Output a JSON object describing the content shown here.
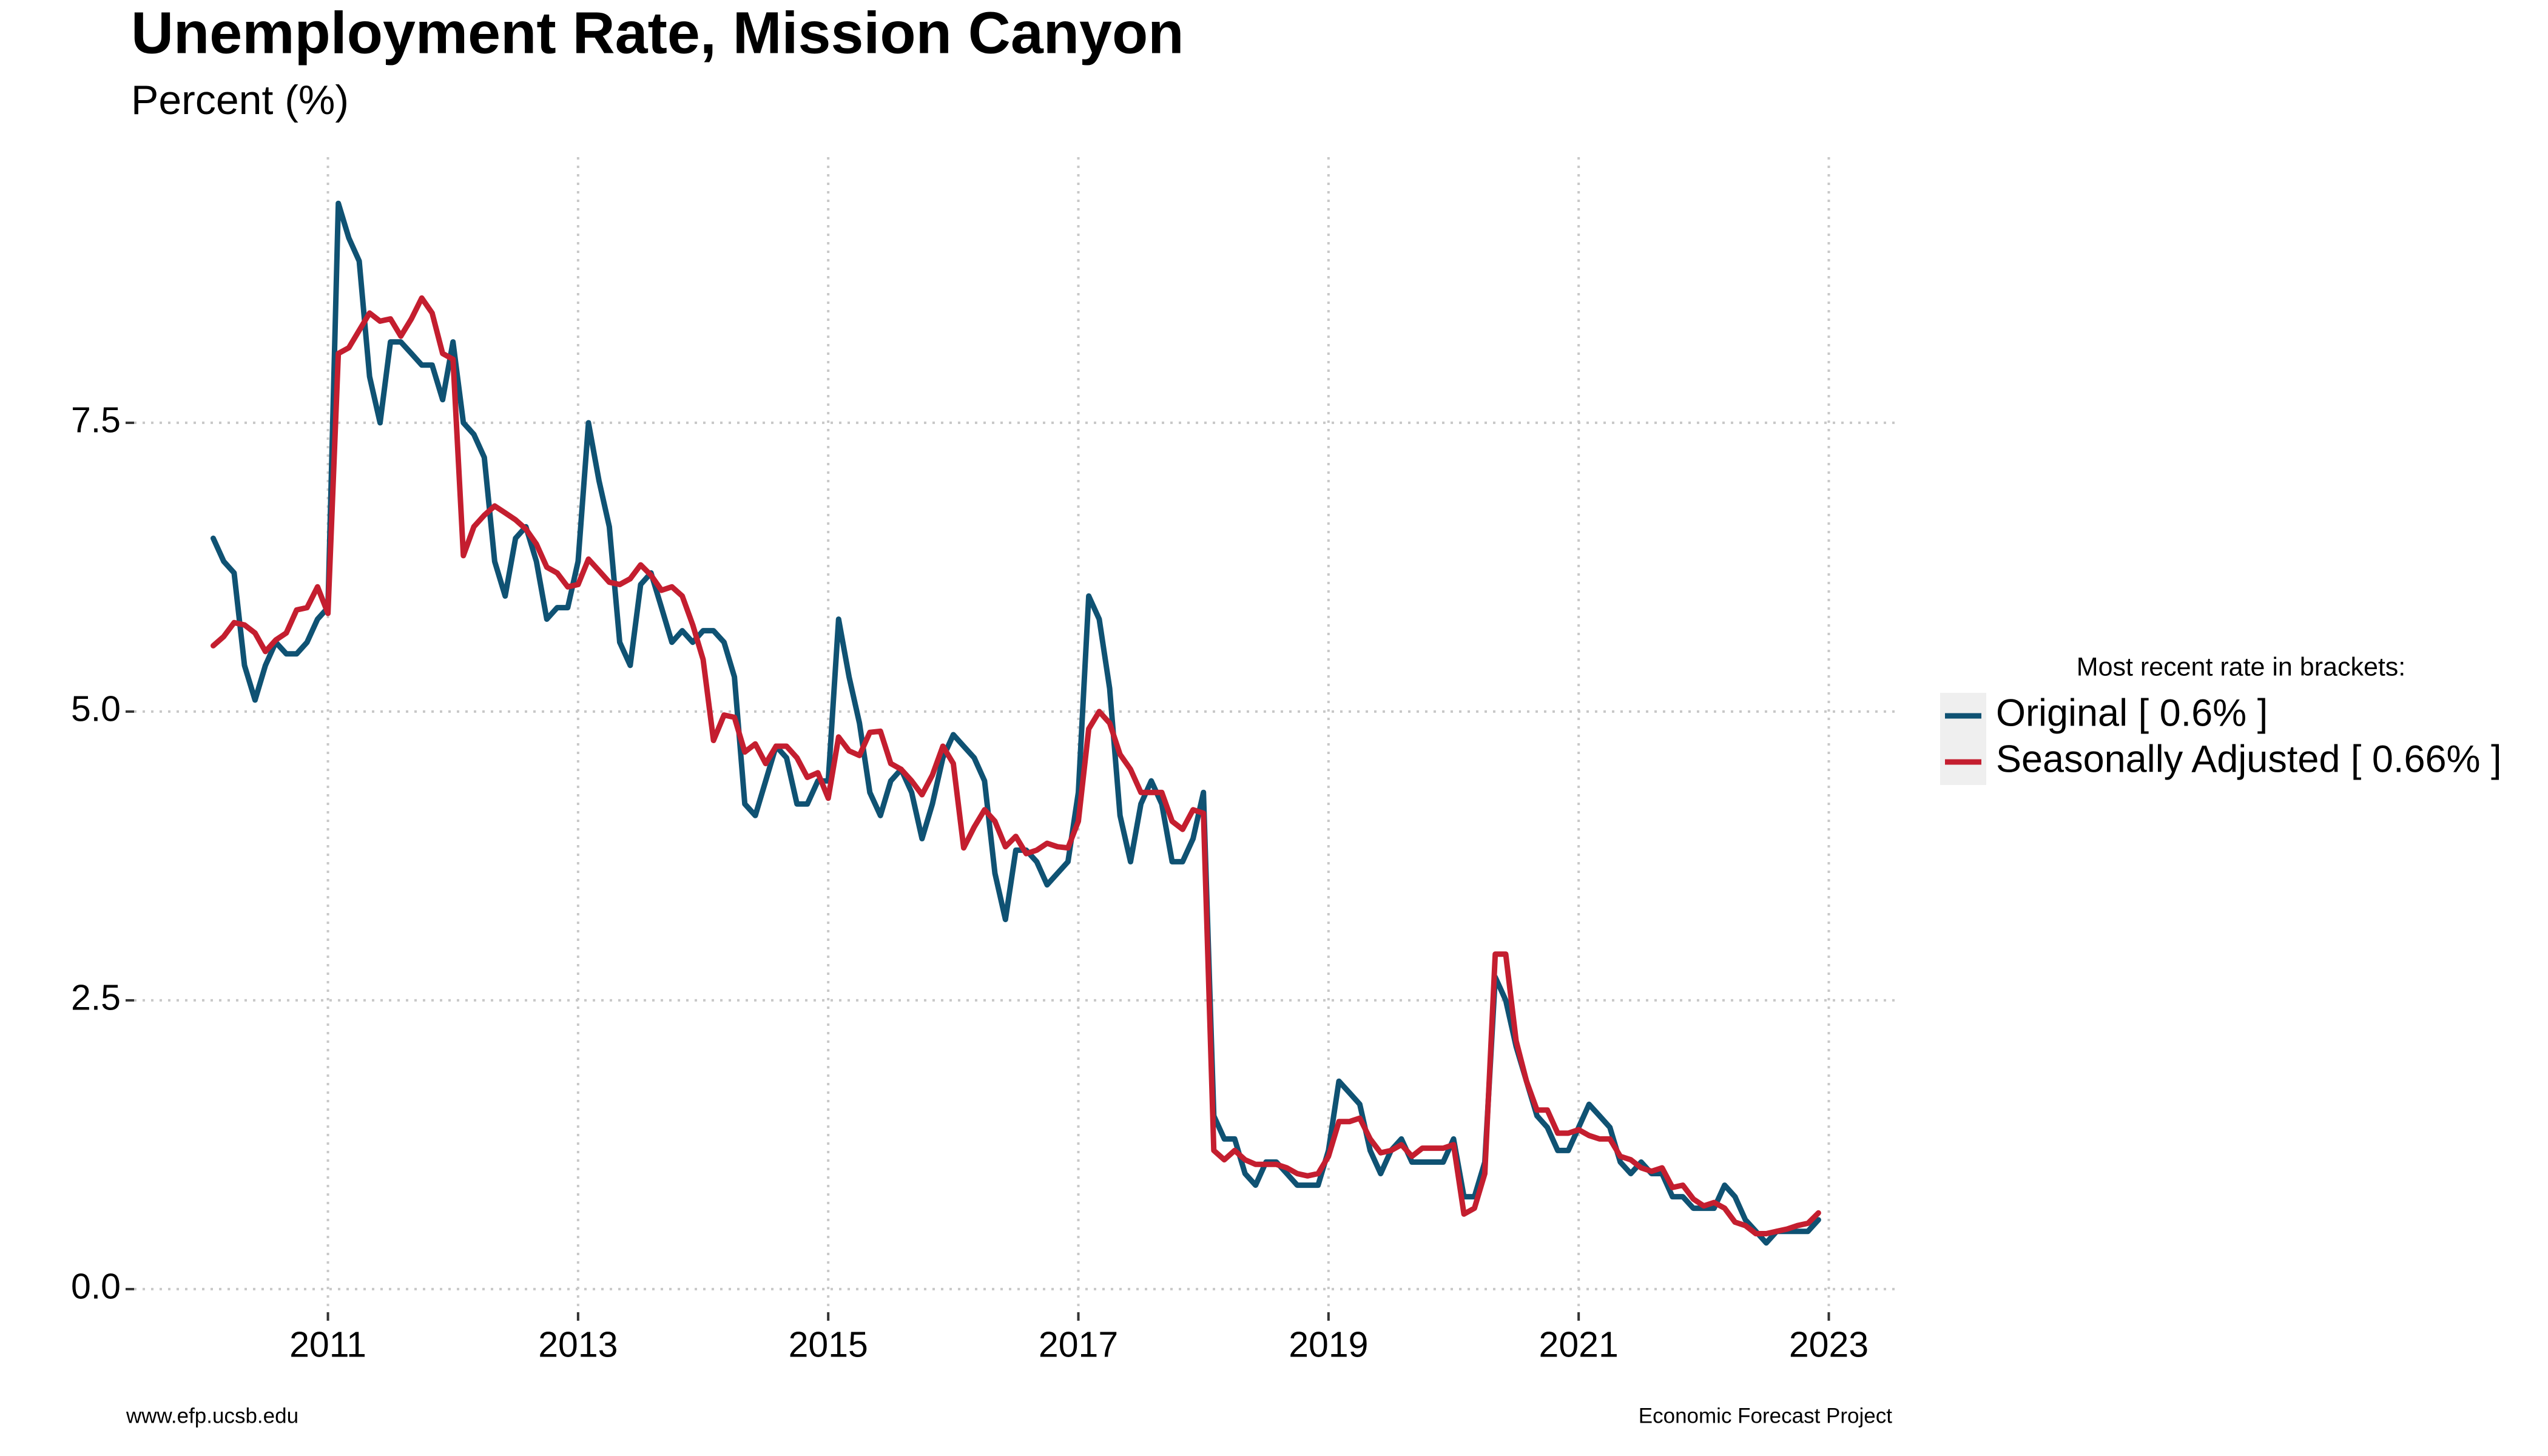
{
  "chart_data": {
    "type": "line",
    "title": "Unemployment Rate, Mission Canyon",
    "subtitle": "Percent (%)",
    "legend_title": "Most recent rate in brackets:",
    "legend_position": "right",
    "grid": true,
    "footer_left": "www.efp.ucsb.edu",
    "footer_right": "Economic Forecast Project",
    "xlim": [
      2009.45,
      2023.57
    ],
    "xticks": [
      2011,
      2013,
      2015,
      2017,
      2019,
      2021,
      2023
    ],
    "ylim": [
      -0.2,
      9.8
    ],
    "yticks": [
      {
        "value": 0,
        "label": "0.0"
      },
      2.5,
      {
        "value": 5,
        "label": "5.0"
      },
      7.5
    ],
    "x": [
      2010.083,
      2010.167,
      2010.25,
      2010.333,
      2010.417,
      2010.5,
      2010.583,
      2010.667,
      2010.75,
      2010.833,
      2010.917,
      2011,
      2011.083,
      2011.167,
      2011.25,
      2011.333,
      2011.417,
      2011.5,
      2011.583,
      2011.667,
      2011.75,
      2011.833,
      2011.917,
      2012,
      2012.083,
      2012.167,
      2012.25,
      2012.333,
      2012.417,
      2012.5,
      2012.583,
      2012.667,
      2012.75,
      2012.833,
      2012.917,
      2013,
      2013.083,
      2013.167,
      2013.25,
      2013.333,
      2013.417,
      2013.5,
      2013.583,
      2013.667,
      2013.75,
      2013.833,
      2013.917,
      2014,
      2014.083,
      2014.167,
      2014.25,
      2014.333,
      2014.417,
      2014.5,
      2014.583,
      2014.667,
      2014.75,
      2014.833,
      2014.917,
      2015,
      2015.083,
      2015.167,
      2015.25,
      2015.333,
      2015.417,
      2015.5,
      2015.583,
      2015.667,
      2015.75,
      2015.833,
      2015.917,
      2016,
      2016.083,
      2016.167,
      2016.25,
      2016.333,
      2016.417,
      2016.5,
      2016.583,
      2016.667,
      2016.75,
      2016.833,
      2016.917,
      2017,
      2017.083,
      2017.167,
      2017.25,
      2017.333,
      2017.417,
      2017.5,
      2017.583,
      2017.667,
      2017.75,
      2017.833,
      2017.917,
      2018,
      2018.083,
      2018.167,
      2018.25,
      2018.333,
      2018.417,
      2018.5,
      2018.583,
      2018.667,
      2018.75,
      2018.833,
      2018.917,
      2019,
      2019.083,
      2019.167,
      2019.25,
      2019.333,
      2019.417,
      2019.5,
      2019.583,
      2019.667,
      2019.75,
      2019.833,
      2019.917,
      2020,
      2020.083,
      2020.167,
      2020.25,
      2020.333,
      2020.417,
      2020.5,
      2020.583,
      2020.667,
      2020.75,
      2020.833,
      2020.917,
      2021,
      2021.083,
      2021.167,
      2021.25,
      2021.333,
      2021.417,
      2021.5,
      2021.583,
      2021.667,
      2021.75,
      2021.833,
      2021.917,
      2022,
      2022.083,
      2022.167,
      2022.25,
      2022.333,
      2022.417,
      2022.5,
      2022.583,
      2022.667,
      2022.75,
      2022.833,
      2022.917
    ],
    "series": [
      {
        "name": "Original [ 0.6% ]",
        "color": "#0f5273",
        "values": [
          6.5,
          6.3,
          6.2,
          5.4,
          5.1,
          5.4,
          5.6,
          5.5,
          5.5,
          5.6,
          5.8,
          5.9,
          9.4,
          9.1,
          8.9,
          7.9,
          7.5,
          8.2,
          8.2,
          8.1,
          8.0,
          8.0,
          7.7,
          8.2,
          7.5,
          7.4,
          7.2,
          6.3,
          6.0,
          6.5,
          6.6,
          6.3,
          5.8,
          5.9,
          5.9,
          6.3,
          7.5,
          7.0,
          6.6,
          5.6,
          5.4,
          6.1,
          6.2,
          5.9,
          5.6,
          5.7,
          5.6,
          5.7,
          5.7,
          5.6,
          5.3,
          4.2,
          4.1,
          4.4,
          4.7,
          4.6,
          4.2,
          4.2,
          4.4,
          4.4,
          5.8,
          5.3,
          4.9,
          4.3,
          4.1,
          4.4,
          4.5,
          4.3,
          3.9,
          4.2,
          4.6,
          4.8,
          4.7,
          4.6,
          4.4,
          3.6,
          3.2,
          3.8,
          3.8,
          3.7,
          3.5,
          3.6,
          3.7,
          4.3,
          6.0,
          5.8,
          5.2,
          4.1,
          3.7,
          4.2,
          4.4,
          4.2,
          3.7,
          3.7,
          3.9,
          4.3,
          1.5,
          1.3,
          1.3,
          1.0,
          0.9,
          1.1,
          1.1,
          1.0,
          0.9,
          0.9,
          0.9,
          1.2,
          1.8,
          1.7,
          1.6,
          1.2,
          1.0,
          1.2,
          1.3,
          1.1,
          1.1,
          1.1,
          1.1,
          1.3,
          0.8,
          0.8,
          1.1,
          2.7,
          2.5,
          2.1,
          1.8,
          1.5,
          1.4,
          1.2,
          1.2,
          1.4,
          1.6,
          1.5,
          1.4,
          1.1,
          1.0,
          1.1,
          1.0,
          1.0,
          0.8,
          0.8,
          0.7,
          0.7,
          0.7,
          0.9,
          0.8,
          0.6,
          0.5,
          0.4,
          0.5,
          0.5,
          0.5,
          0.5,
          0.6
        ]
      },
      {
        "name": "Seasonally Adjusted [ 0.66% ]",
        "color": "#c41e2f",
        "values": [
          5.57,
          5.65,
          5.77,
          5.75,
          5.68,
          5.52,
          5.62,
          5.68,
          5.88,
          5.9,
          6.08,
          5.85,
          8.1,
          8.15,
          8.3,
          8.45,
          8.38,
          8.4,
          8.25,
          8.4,
          8.58,
          8.45,
          8.1,
          8.05,
          6.35,
          6.6,
          6.7,
          6.78,
          6.72,
          6.66,
          6.58,
          6.45,
          6.25,
          6.2,
          6.08,
          6.1,
          6.32,
          6.22,
          6.12,
          6.1,
          6.15,
          6.27,
          6.18,
          6.05,
          6.08,
          6.0,
          5.75,
          5.45,
          4.75,
          4.97,
          4.95,
          4.65,
          4.72,
          4.55,
          4.7,
          4.7,
          4.6,
          4.43,
          4.47,
          4.25,
          4.78,
          4.66,
          4.62,
          4.82,
          4.83,
          4.55,
          4.5,
          4.4,
          4.28,
          4.45,
          4.7,
          4.55,
          3.82,
          4.0,
          4.15,
          4.05,
          3.83,
          3.92,
          3.77,
          3.8,
          3.86,
          3.83,
          3.82,
          4.05,
          4.85,
          5.0,
          4.9,
          4.63,
          4.5,
          4.3,
          4.3,
          4.3,
          4.05,
          3.98,
          4.15,
          4.12,
          1.2,
          1.12,
          1.2,
          1.12,
          1.08,
          1.08,
          1.08,
          1.05,
          1.0,
          0.98,
          1.0,
          1.15,
          1.45,
          1.45,
          1.48,
          1.3,
          1.18,
          1.2,
          1.25,
          1.15,
          1.22,
          1.22,
          1.22,
          1.25,
          0.65,
          0.7,
          1.0,
          2.9,
          2.9,
          2.15,
          1.8,
          1.55,
          1.55,
          1.35,
          1.35,
          1.38,
          1.33,
          1.3,
          1.3,
          1.15,
          1.12,
          1.05,
          1.02,
          1.05,
          0.88,
          0.9,
          0.78,
          0.72,
          0.75,
          0.7,
          0.58,
          0.55,
          0.48,
          0.48,
          0.5,
          0.52,
          0.55,
          0.57,
          0.66
        ]
      }
    ]
  }
}
